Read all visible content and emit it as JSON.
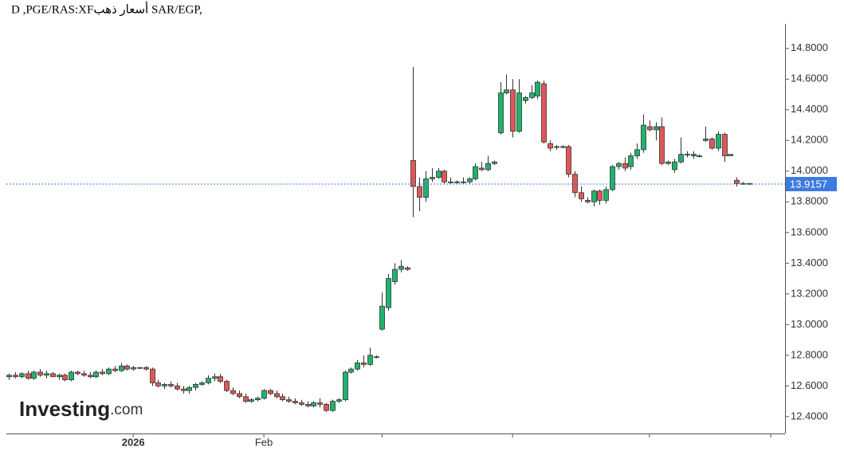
{
  "chart_data": {
    "type": "candlestick",
    "title": "D ,PGE/RAS:XFأسعار ذهب SAR/EGP,",
    "brand": {
      "name": "Investing",
      "suffix": ".com"
    },
    "up_color": "#1fb36e",
    "down_color": "#e05757",
    "last_price": 13.9157,
    "last_price_color": "#3d7ae0",
    "ylim": [
      12.29,
      14.96
    ],
    "yticks": [
      {
        "value": 12.4,
        "label": "12.4000"
      },
      {
        "value": 12.6,
        "label": "12.6000"
      },
      {
        "value": 12.8,
        "label": "12.8000"
      },
      {
        "value": 13.0,
        "label": "13.0000"
      },
      {
        "value": 13.2,
        "label": "13.2000"
      },
      {
        "value": 13.4,
        "label": "13.4000"
      },
      {
        "value": 13.6,
        "label": "13.6000"
      },
      {
        "value": 13.8,
        "label": "13.8000"
      },
      {
        "value": 14.0,
        "label": "14.0000"
      },
      {
        "value": 14.2,
        "label": "14.2000"
      },
      {
        "value": 14.4,
        "label": "14.4000"
      },
      {
        "value": 14.6,
        "label": "14.6000"
      },
      {
        "value": 14.8,
        "label": "14.8000"
      }
    ],
    "xlim": [
      -0.4,
      124.8
    ],
    "xticks": [
      {
        "value": 20,
        "label": "2026"
      },
      {
        "value": 41,
        "label": "Feb"
      },
      60,
      81,
      103,
      122.5
    ],
    "ohlc": [
      [
        12.66,
        12.68,
        12.64,
        12.67
      ],
      [
        12.67,
        12.69,
        12.65,
        12.66
      ],
      [
        12.66,
        12.69,
        12.65,
        12.68
      ],
      [
        12.68,
        12.7,
        12.64,
        12.65
      ],
      [
        12.65,
        12.7,
        12.64,
        12.69
      ],
      [
        12.69,
        12.71,
        12.66,
        12.67
      ],
      [
        12.67,
        12.7,
        12.65,
        12.68
      ],
      [
        12.68,
        12.69,
        12.66,
        12.66
      ],
      [
        12.66,
        12.68,
        12.64,
        12.67
      ],
      [
        12.67,
        12.68,
        12.63,
        12.64
      ],
      [
        12.64,
        12.7,
        12.63,
        12.69
      ],
      [
        12.69,
        12.7,
        12.67,
        12.68
      ],
      [
        12.68,
        12.7,
        12.66,
        12.67
      ],
      [
        12.67,
        12.69,
        12.65,
        12.66
      ],
      [
        12.66,
        12.7,
        12.65,
        12.69
      ],
      [
        12.69,
        12.71,
        12.67,
        12.68
      ],
      [
        12.68,
        12.72,
        12.67,
        12.71
      ],
      [
        12.71,
        12.73,
        12.69,
        12.7
      ],
      [
        12.7,
        12.75,
        12.69,
        12.73
      ],
      [
        12.73,
        12.74,
        12.7,
        12.71
      ],
      [
        12.71,
        12.73,
        12.7,
        12.72
      ],
      [
        12.72,
        12.72,
        12.71,
        12.72
      ],
      [
        12.72,
        12.73,
        12.7,
        12.71
      ],
      [
        12.71,
        12.72,
        12.6,
        12.62
      ],
      [
        12.62,
        12.64,
        12.59,
        12.6
      ],
      [
        12.6,
        12.62,
        12.58,
        12.61
      ],
      [
        12.61,
        12.63,
        12.59,
        12.6
      ],
      [
        12.6,
        12.62,
        12.57,
        12.58
      ],
      [
        12.58,
        12.6,
        12.55,
        12.57
      ],
      [
        12.57,
        12.6,
        12.55,
        12.59
      ],
      [
        12.59,
        12.62,
        12.57,
        12.61
      ],
      [
        12.61,
        12.63,
        12.6,
        12.62
      ],
      [
        12.62,
        12.67,
        12.61,
        12.65
      ],
      [
        12.65,
        12.68,
        12.63,
        12.66
      ],
      [
        12.66,
        12.68,
        12.62,
        12.63
      ],
      [
        12.63,
        12.64,
        12.56,
        12.57
      ],
      [
        12.57,
        12.59,
        12.54,
        12.55
      ],
      [
        12.55,
        12.57,
        12.52,
        12.53
      ],
      [
        12.53,
        12.55,
        12.49,
        12.5
      ],
      [
        12.5,
        12.52,
        12.49,
        12.51
      ],
      [
        12.51,
        12.53,
        12.5,
        12.52
      ],
      [
        12.52,
        12.58,
        12.51,
        12.57
      ],
      [
        12.57,
        12.58,
        12.54,
        12.55
      ],
      [
        12.55,
        12.57,
        12.52,
        12.53
      ],
      [
        12.53,
        12.55,
        12.5,
        12.51
      ],
      [
        12.51,
        12.53,
        12.49,
        12.5
      ],
      [
        12.5,
        12.52,
        12.48,
        12.49
      ],
      [
        12.49,
        12.51,
        12.47,
        12.48
      ],
      [
        12.48,
        12.5,
        12.46,
        12.47
      ],
      [
        12.47,
        12.5,
        12.46,
        12.49
      ],
      [
        12.49,
        12.52,
        12.46,
        12.48
      ],
      [
        12.48,
        12.49,
        12.43,
        12.44
      ],
      [
        12.44,
        12.51,
        12.43,
        12.5
      ],
      [
        12.5,
        12.52,
        12.49,
        12.51
      ],
      [
        12.51,
        12.7,
        12.5,
        12.69
      ],
      [
        12.69,
        12.72,
        12.68,
        12.71
      ],
      [
        12.71,
        12.77,
        12.7,
        12.75
      ],
      [
        12.75,
        12.8,
        12.72,
        12.74
      ],
      [
        12.74,
        12.85,
        12.73,
        12.8
      ],
      [
        12.79,
        12.8,
        12.78,
        12.79
      ],
      [
        12.97,
        13.21,
        12.96,
        13.12
      ],
      [
        13.11,
        13.33,
        13.09,
        13.3
      ],
      [
        13.28,
        13.4,
        13.26,
        13.36
      ],
      [
        13.36,
        13.42,
        13.34,
        13.38
      ],
      [
        13.37,
        13.38,
        13.35,
        13.36
      ],
      [
        14.07,
        14.68,
        13.7,
        13.9
      ],
      [
        13.9,
        13.96,
        13.74,
        13.83
      ],
      [
        13.83,
        14.0,
        13.8,
        13.95
      ],
      [
        13.95,
        14.02,
        13.93,
        13.96
      ],
      [
        13.96,
        14.02,
        13.95,
        14.0
      ],
      [
        14.0,
        14.01,
        13.92,
        13.93
      ],
      [
        13.93,
        13.96,
        13.92,
        13.93
      ],
      [
        13.93,
        13.94,
        13.92,
        13.93
      ],
      [
        13.93,
        13.96,
        13.92,
        13.93
      ],
      [
        13.93,
        13.96,
        13.92,
        13.95
      ],
      [
        13.95,
        14.05,
        13.94,
        14.03
      ],
      [
        14.02,
        14.06,
        14.0,
        14.01
      ],
      [
        14.01,
        14.1,
        14.0,
        14.05
      ],
      [
        14.05,
        14.07,
        14.04,
        14.06
      ],
      [
        14.25,
        14.58,
        14.24,
        14.51
      ],
      [
        14.51,
        14.63,
        14.5,
        14.53
      ],
      [
        14.53,
        14.6,
        14.22,
        14.26
      ],
      [
        14.26,
        14.6,
        14.25,
        14.51
      ],
      [
        14.46,
        14.49,
        14.44,
        14.48
      ],
      [
        14.48,
        14.56,
        14.47,
        14.51
      ],
      [
        14.49,
        14.59,
        14.47,
        14.58
      ],
      [
        14.57,
        14.59,
        14.18,
        14.19
      ],
      [
        14.18,
        14.2,
        14.13,
        14.15
      ],
      [
        14.16,
        14.17,
        14.14,
        14.16
      ],
      [
        14.16,
        14.17,
        14.15,
        14.16
      ],
      [
        14.16,
        14.17,
        13.96,
        13.98
      ],
      [
        13.98,
        14.0,
        13.83,
        13.86
      ],
      [
        13.86,
        13.9,
        13.8,
        13.82
      ],
      [
        13.81,
        13.83,
        13.79,
        13.8
      ],
      [
        13.8,
        13.88,
        13.77,
        13.87
      ],
      [
        13.87,
        13.88,
        13.78,
        13.81
      ],
      [
        13.81,
        13.9,
        13.79,
        13.88
      ],
      [
        13.88,
        14.04,
        13.87,
        14.03
      ],
      [
        14.03,
        14.06,
        14.01,
        14.05
      ],
      [
        14.05,
        14.09,
        14.0,
        14.02
      ],
      [
        14.03,
        14.12,
        14.01,
        14.1
      ],
      [
        14.1,
        14.18,
        14.08,
        14.14
      ],
      [
        14.14,
        14.37,
        14.12,
        14.3
      ],
      [
        14.29,
        14.33,
        14.26,
        14.27
      ],
      [
        14.27,
        14.32,
        14.2,
        14.29
      ],
      [
        14.29,
        14.35,
        14.04,
        14.05
      ],
      [
        14.05,
        14.07,
        14.04,
        14.06
      ],
      [
        14.01,
        14.08,
        13.99,
        14.06
      ],
      [
        14.06,
        14.22,
        14.05,
        14.11
      ],
      [
        14.11,
        14.13,
        14.09,
        14.11
      ],
      [
        14.1,
        14.13,
        14.08,
        14.11
      ],
      [
        14.1,
        14.11,
        14.09,
        14.1
      ],
      [
        14.2,
        14.29,
        14.19,
        14.21
      ],
      [
        14.21,
        14.22,
        14.14,
        14.15
      ],
      [
        14.15,
        14.26,
        14.13,
        14.24
      ],
      [
        14.24,
        14.25,
        14.06,
        14.1
      ],
      [
        14.1,
        14.11,
        14.1,
        14.11
      ],
      [
        13.94,
        13.96,
        13.9,
        13.92
      ],
      [
        13.92,
        13.93,
        13.91,
        13.92
      ],
      [
        13.92,
        13.92,
        13.91,
        13.9157
      ]
    ]
  }
}
